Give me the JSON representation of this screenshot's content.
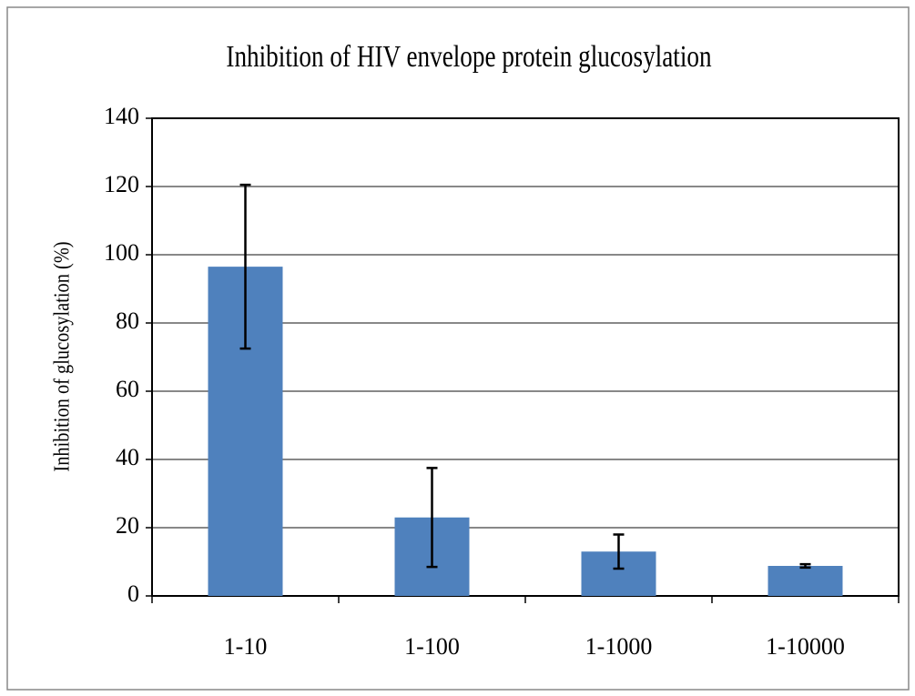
{
  "chart_data": {
    "type": "bar",
    "title": "Inhibition of HIV envelope protein glucosylation",
    "y_label": "Inhibition of glucosylation (%)",
    "categories": [
      "1-10",
      "1-100",
      "1-1000",
      "1-10000"
    ],
    "values": [
      96.5,
      23,
      13,
      8.8
    ],
    "errors": [
      24,
      14.5,
      5,
      0.5
    ],
    "color": "#4f81bd",
    "ylim": [
      0,
      140
    ],
    "yticks": [
      0,
      20,
      40,
      60,
      80,
      100,
      120,
      140
    ],
    "grid": true
  }
}
